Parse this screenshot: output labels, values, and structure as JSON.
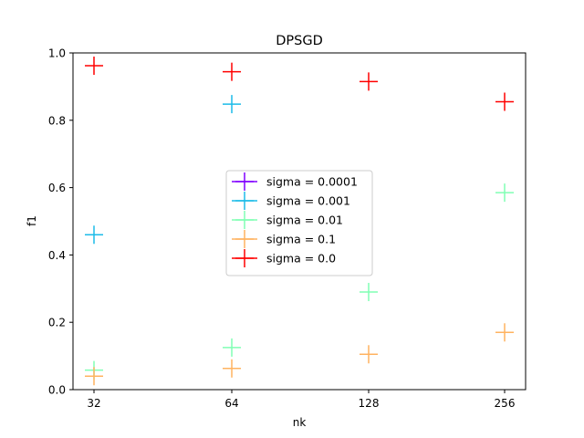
{
  "chart_data": {
    "type": "scatter",
    "title": "DPSGD",
    "xlabel": "nk",
    "ylabel": "f1",
    "x_categories": [
      "32",
      "64",
      "128",
      "256"
    ],
    "ylim": [
      0.0,
      1.0
    ],
    "yticks": [
      "0.0",
      "0.2",
      "0.4",
      "0.6",
      "0.8",
      "1.0"
    ],
    "grid": false,
    "legend_position": "center",
    "marker": "+",
    "series": [
      {
        "name": "sigma = 0.0001",
        "color": "#8000ff",
        "points": []
      },
      {
        "name": "sigma = 0.001",
        "color": "#1cbbe8",
        "points": [
          {
            "x": "32",
            "y": 0.46
          },
          {
            "x": "64",
            "y": 0.848
          }
        ]
      },
      {
        "name": "sigma = 0.01",
        "color": "#80ffb4",
        "points": [
          {
            "x": "32",
            "y": 0.058
          },
          {
            "x": "64",
            "y": 0.125
          },
          {
            "x": "128",
            "y": 0.29
          },
          {
            "x": "256",
            "y": 0.585
          }
        ]
      },
      {
        "name": "sigma = 0.1",
        "color": "#ffb360",
        "points": [
          {
            "x": "32",
            "y": 0.04
          },
          {
            "x": "64",
            "y": 0.063
          },
          {
            "x": "128",
            "y": 0.105
          },
          {
            "x": "256",
            "y": 0.17
          }
        ]
      },
      {
        "name": "sigma = 0.0",
        "color": "#ff0000",
        "points": [
          {
            "x": "32",
            "y": 0.962
          },
          {
            "x": "64",
            "y": 0.944
          },
          {
            "x": "128",
            "y": 0.915
          },
          {
            "x": "256",
            "y": 0.855
          }
        ]
      }
    ]
  }
}
